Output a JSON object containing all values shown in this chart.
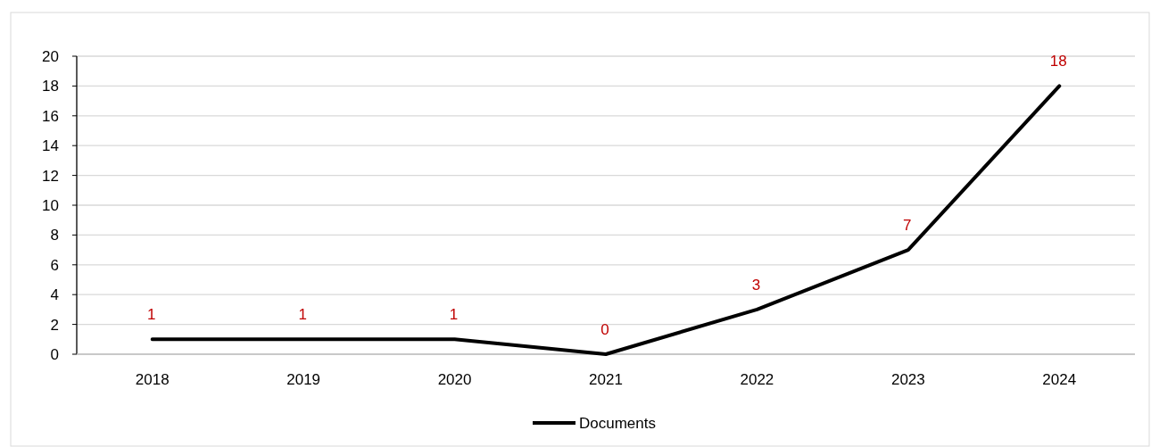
{
  "chart_data": {
    "type": "line",
    "categories": [
      "2018",
      "2019",
      "2020",
      "2021",
      "2022",
      "2023",
      "2024"
    ],
    "series": [
      {
        "name": "Documents",
        "color": "#000000",
        "values": [
          1,
          1,
          1,
          0,
          3,
          7,
          18
        ]
      }
    ],
    "ylim": [
      0,
      20
    ],
    "yticks": [
      0,
      2,
      4,
      6,
      8,
      10,
      12,
      14,
      16,
      18,
      20
    ],
    "grid": "y",
    "legend": "bottom",
    "data_labels": true
  }
}
